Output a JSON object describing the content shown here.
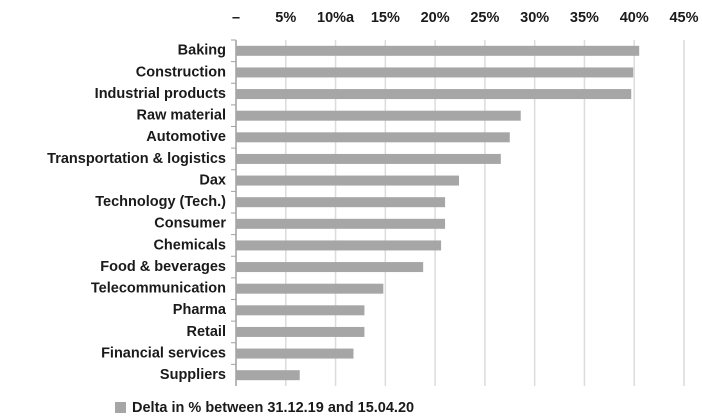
{
  "chart_data": {
    "type": "hbar",
    "categories": [
      "Baking",
      "Construction",
      "Industrial products",
      "Raw material",
      "Automotive",
      "Transportation & logistics",
      "Dax",
      "Technology (Tech.)",
      "Consumer",
      "Chemicals",
      "Food & beverages",
      "Telecommunication",
      "Pharma",
      "Retail",
      "Financial services",
      "Suppliers"
    ],
    "series": [
      {
        "name": "Delta in % between 31.12.19 and 15.04.20",
        "color": "#a6a6a6",
        "values": [
          40.5,
          39.9,
          39.7,
          28.6,
          27.5,
          26.6,
          22.4,
          21.0,
          21.0,
          20.6,
          18.8,
          14.8,
          12.9,
          12.9,
          11.8,
          6.4
        ]
      }
    ],
    "xlim": [
      0,
      45
    ],
    "xticks": [
      {
        "value": 0,
        "label": "–"
      },
      {
        "value": 5,
        "label": "5%"
      },
      {
        "value": 10,
        "label": "10%a"
      },
      {
        "value": 15,
        "label": "15%"
      },
      {
        "value": 20,
        "label": "20%"
      },
      {
        "value": 25,
        "label": "25%"
      },
      {
        "value": 30,
        "label": "30%"
      },
      {
        "value": 35,
        "label": "35%"
      },
      {
        "value": 40,
        "label": "40%"
      },
      {
        "value": 45,
        "label": "45%"
      }
    ],
    "grid": true,
    "legend": "bottom"
  }
}
